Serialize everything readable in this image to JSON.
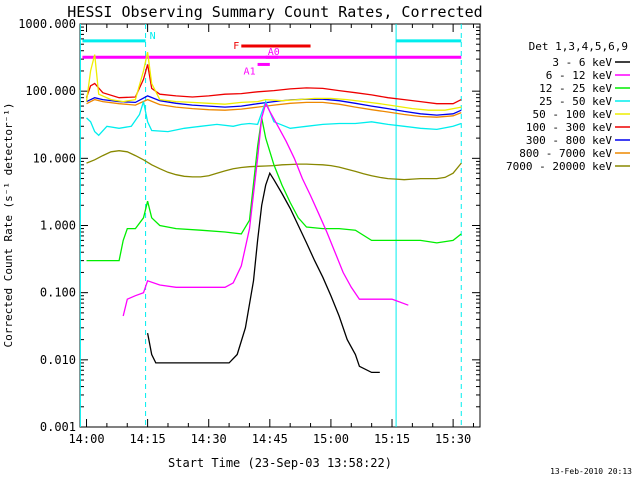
{
  "chart_data": {
    "type": "line",
    "title": "HESSI Observing Summary Count Rates, Corrected",
    "xlabel": "Start Time (23-Sep-03 13:58:22)",
    "ylabel": "Corrected Count Rate (s⁻¹ detector⁻¹)",
    "y_scale": "log",
    "ylim": [
      0.001,
      1000
    ],
    "xlim": [
      "13:58:22",
      "15:37:00"
    ],
    "x_tick_labels": [
      "14:00",
      "14:15",
      "14:30",
      "14:45",
      "15:00",
      "15:15",
      "15:30"
    ],
    "x_tick_minutes": [
      0,
      15,
      30,
      45,
      60,
      75,
      90
    ],
    "y_tick_labels": [
      "0.001",
      "0.010",
      "0.100",
      "1.000",
      "10.000",
      "100.000",
      "1000.000"
    ],
    "y_tick_values": [
      0.001,
      0.01,
      0.1,
      1,
      10,
      100,
      1000
    ],
    "legend_title": "Det 1,3,4,5,6,9",
    "legend_position": "right",
    "footer_date": "13-Feb-2010 20:13",
    "x_units": "minutes after 14:00 UT",
    "series": [
      {
        "name": "3 - 6 keV",
        "color": "#000000",
        "points": [
          [
            15,
            0.025
          ],
          [
            16,
            0.012
          ],
          [
            17,
            0.009
          ],
          [
            25,
            0.009
          ],
          [
            30,
            0.009
          ],
          [
            35,
            0.009
          ],
          [
            37,
            0.012
          ],
          [
            39,
            0.03
          ],
          [
            41,
            0.15
          ],
          [
            42,
            0.6
          ],
          [
            43,
            2.0
          ],
          [
            44,
            4.0
          ],
          [
            45,
            6.0
          ],
          [
            46,
            4.8
          ],
          [
            48,
            3.0
          ],
          [
            50,
            1.8
          ],
          [
            52,
            1.0
          ],
          [
            54,
            0.55
          ],
          [
            56,
            0.3
          ],
          [
            58,
            0.17
          ],
          [
            60,
            0.09
          ],
          [
            62,
            0.045
          ],
          [
            64,
            0.02
          ],
          [
            66,
            0.012
          ],
          [
            67,
            0.008
          ],
          [
            70,
            0.0065
          ],
          [
            72,
            0.0065
          ]
        ]
      },
      {
        "name": "6 - 12 keV",
        "color": "#ff00ff",
        "points": [
          [
            9,
            0.045
          ],
          [
            10,
            0.08
          ],
          [
            12,
            0.09
          ],
          [
            14,
            0.1
          ],
          [
            15,
            0.15
          ],
          [
            18,
            0.13
          ],
          [
            22,
            0.12
          ],
          [
            28,
            0.12
          ],
          [
            34,
            0.12
          ],
          [
            36,
            0.14
          ],
          [
            38,
            0.25
          ],
          [
            40,
            0.9
          ],
          [
            42,
            10
          ],
          [
            43,
            40
          ],
          [
            44,
            65
          ],
          [
            45,
            50
          ],
          [
            47,
            30
          ],
          [
            49,
            18
          ],
          [
            51,
            10
          ],
          [
            53,
            5
          ],
          [
            55,
            2.8
          ],
          [
            57,
            1.5
          ],
          [
            59,
            0.8
          ],
          [
            61,
            0.4
          ],
          [
            63,
            0.2
          ],
          [
            65,
            0.12
          ],
          [
            67,
            0.08
          ],
          [
            70,
            0.08
          ],
          [
            75,
            0.08
          ],
          [
            79,
            0.065
          ]
        ]
      },
      {
        "name": "12 - 25 keV",
        "color": "#00ee00",
        "points": [
          [
            0,
            0.3
          ],
          [
            2,
            0.3
          ],
          [
            4,
            0.3
          ],
          [
            6,
            0.3
          ],
          [
            8,
            0.3
          ],
          [
            9,
            0.6
          ],
          [
            10,
            0.9
          ],
          [
            12,
            0.9
          ],
          [
            14,
            1.3
          ],
          [
            15,
            2.3
          ],
          [
            16,
            1.3
          ],
          [
            18,
            1.0
          ],
          [
            22,
            0.9
          ],
          [
            28,
            0.85
          ],
          [
            34,
            0.8
          ],
          [
            38,
            0.75
          ],
          [
            40,
            1.2
          ],
          [
            42,
            15
          ],
          [
            43,
            40
          ],
          [
            44,
            20
          ],
          [
            46,
            8
          ],
          [
            48,
            4
          ],
          [
            50,
            2.2
          ],
          [
            52,
            1.3
          ],
          [
            54,
            0.95
          ],
          [
            58,
            0.9
          ],
          [
            62,
            0.9
          ],
          [
            66,
            0.85
          ],
          [
            70,
            0.6
          ],
          [
            74,
            0.6
          ],
          [
            78,
            0.6
          ],
          [
            82,
            0.6
          ],
          [
            86,
            0.55
          ],
          [
            90,
            0.6
          ],
          [
            92,
            0.75
          ]
        ]
      },
      {
        "name": "25 - 50 keV",
        "color": "#00eeee",
        "points": [
          [
            0,
            40
          ],
          [
            1,
            35
          ],
          [
            2,
            25
          ],
          [
            3,
            22
          ],
          [
            5,
            30
          ],
          [
            8,
            28
          ],
          [
            11,
            30
          ],
          [
            13,
            45
          ],
          [
            14,
            70
          ],
          [
            15,
            35
          ],
          [
            16,
            26
          ],
          [
            20,
            25
          ],
          [
            24,
            28
          ],
          [
            28,
            30
          ],
          [
            32,
            32
          ],
          [
            36,
            30
          ],
          [
            38,
            32
          ],
          [
            40,
            33
          ],
          [
            42,
            32
          ],
          [
            44,
            70
          ],
          [
            46,
            35
          ],
          [
            50,
            28
          ],
          [
            54,
            30
          ],
          [
            58,
            32
          ],
          [
            62,
            33
          ],
          [
            66,
            33
          ],
          [
            70,
            35
          ],
          [
            74,
            32
          ],
          [
            78,
            30
          ],
          [
            82,
            28
          ],
          [
            86,
            27
          ],
          [
            90,
            30
          ],
          [
            92,
            33
          ]
        ]
      },
      {
        "name": "50 - 100 keV",
        "color": "#eeee00",
        "points": [
          [
            0,
            70
          ],
          [
            1,
            200
          ],
          [
            2,
            350
          ],
          [
            3,
            90
          ],
          [
            6,
            75
          ],
          [
            9,
            70
          ],
          [
            12,
            75
          ],
          [
            14,
            200
          ],
          [
            15,
            380
          ],
          [
            16,
            130
          ],
          [
            18,
            75
          ],
          [
            22,
            70
          ],
          [
            26,
            68
          ],
          [
            30,
            66
          ],
          [
            34,
            64
          ],
          [
            38,
            68
          ],
          [
            42,
            70
          ],
          [
            44,
            75
          ],
          [
            48,
            72
          ],
          [
            52,
            75
          ],
          [
            56,
            78
          ],
          [
            60,
            78
          ],
          [
            64,
            75
          ],
          [
            68,
            70
          ],
          [
            72,
            65
          ],
          [
            76,
            60
          ],
          [
            80,
            55
          ],
          [
            84,
            52
          ],
          [
            88,
            52
          ],
          [
            92,
            58
          ]
        ]
      },
      {
        "name": "100 - 300 keV",
        "color": "#ee0000",
        "points": [
          [
            0,
            80
          ],
          [
            1,
            120
          ],
          [
            2,
            130
          ],
          [
            4,
            95
          ],
          [
            8,
            80
          ],
          [
            12,
            82
          ],
          [
            14,
            150
          ],
          [
            15,
            250
          ],
          [
            16,
            110
          ],
          [
            18,
            90
          ],
          [
            22,
            85
          ],
          [
            26,
            82
          ],
          [
            30,
            85
          ],
          [
            34,
            90
          ],
          [
            38,
            92
          ],
          [
            42,
            98
          ],
          [
            46,
            102
          ],
          [
            50,
            108
          ],
          [
            54,
            112
          ],
          [
            58,
            110
          ],
          [
            62,
            102
          ],
          [
            66,
            95
          ],
          [
            70,
            88
          ],
          [
            74,
            80
          ],
          [
            78,
            75
          ],
          [
            82,
            70
          ],
          [
            86,
            65
          ],
          [
            90,
            65
          ],
          [
            92,
            75
          ]
        ]
      },
      {
        "name": "300 - 800 keV",
        "color": "#0000ee",
        "points": [
          [
            0,
            70
          ],
          [
            2,
            80
          ],
          [
            4,
            75
          ],
          [
            8,
            70
          ],
          [
            12,
            68
          ],
          [
            15,
            85
          ],
          [
            18,
            72
          ],
          [
            22,
            66
          ],
          [
            26,
            62
          ],
          [
            30,
            60
          ],
          [
            34,
            58
          ],
          [
            38,
            60
          ],
          [
            42,
            65
          ],
          [
            46,
            70
          ],
          [
            50,
            74
          ],
          [
            54,
            76
          ],
          [
            58,
            76
          ],
          [
            62,
            72
          ],
          [
            66,
            66
          ],
          [
            70,
            60
          ],
          [
            74,
            55
          ],
          [
            78,
            50
          ],
          [
            82,
            46
          ],
          [
            86,
            44
          ],
          [
            90,
            46
          ],
          [
            92,
            52
          ]
        ]
      },
      {
        "name": "800 - 7000 keV",
        "color": "#ee8800",
        "points": [
          [
            0,
            65
          ],
          [
            2,
            75
          ],
          [
            4,
            70
          ],
          [
            8,
            65
          ],
          [
            12,
            62
          ],
          [
            15,
            75
          ],
          [
            18,
            63
          ],
          [
            22,
            58
          ],
          [
            26,
            55
          ],
          [
            30,
            53
          ],
          [
            34,
            52
          ],
          [
            38,
            54
          ],
          [
            42,
            58
          ],
          [
            46,
            62
          ],
          [
            50,
            66
          ],
          [
            54,
            68
          ],
          [
            58,
            68
          ],
          [
            62,
            64
          ],
          [
            66,
            58
          ],
          [
            70,
            53
          ],
          [
            74,
            49
          ],
          [
            78,
            45
          ],
          [
            82,
            42
          ],
          [
            86,
            41
          ],
          [
            90,
            43
          ],
          [
            92,
            48
          ]
        ]
      },
      {
        "name": "7000 - 20000 keV",
        "color": "#888800",
        "points": [
          [
            0,
            8.5
          ],
          [
            2,
            9.5
          ],
          [
            4,
            11
          ],
          [
            6,
            12.5
          ],
          [
            8,
            13
          ],
          [
            10,
            12.5
          ],
          [
            12,
            11
          ],
          [
            14,
            9.5
          ],
          [
            16,
            8
          ],
          [
            18,
            7
          ],
          [
            20,
            6.2
          ],
          [
            22,
            5.7
          ],
          [
            24,
            5.4
          ],
          [
            26,
            5.3
          ],
          [
            28,
            5.3
          ],
          [
            30,
            5.5
          ],
          [
            32,
            6
          ],
          [
            34,
            6.5
          ],
          [
            36,
            7
          ],
          [
            38,
            7.3
          ],
          [
            40,
            7.5
          ],
          [
            42,
            7.6
          ],
          [
            44,
            7.7
          ],
          [
            46,
            7.8
          ],
          [
            48,
            8
          ],
          [
            50,
            8.1
          ],
          [
            52,
            8.2
          ],
          [
            54,
            8.2
          ],
          [
            56,
            8.1
          ],
          [
            58,
            8
          ],
          [
            60,
            7.8
          ],
          [
            62,
            7.4
          ],
          [
            64,
            6.9
          ],
          [
            66,
            6.4
          ],
          [
            68,
            5.9
          ],
          [
            70,
            5.5
          ],
          [
            72,
            5.2
          ],
          [
            74,
            5
          ],
          [
            76,
            4.9
          ],
          [
            78,
            4.8
          ],
          [
            80,
            4.9
          ],
          [
            82,
            5
          ],
          [
            84,
            5
          ],
          [
            86,
            5
          ],
          [
            88,
            5.2
          ],
          [
            90,
            6
          ],
          [
            92,
            8.5
          ]
        ]
      }
    ],
    "flag_bars": [
      {
        "label": "N",
        "color": "#00eeee",
        "start": -1,
        "end": 14.5,
        "y": 560
      },
      {
        "label": "",
        "color": "#00eeee",
        "start": 76,
        "end": 92,
        "y": 560
      },
      {
        "label": "F",
        "color": "#ee0000",
        "start": 38,
        "end": 55,
        "y": 470
      },
      {
        "label": "",
        "color": "#ff00ff",
        "start": -1,
        "end": 92,
        "y": 320
      },
      {
        "label": "A1",
        "color": "#ff00ff",
        "start": 42,
        "end": 45,
        "y": 250
      },
      {
        "label": "A0",
        "color": "#ff00ff",
        "start": 44,
        "end": 47,
        "y": 320
      }
    ],
    "vertical_lines": [
      {
        "minute": -1.5,
        "color": "#00eeee",
        "style": "solid"
      },
      {
        "minute": 14.5,
        "color": "#00eeee",
        "style": "dashed"
      },
      {
        "minute": 76,
        "color": "#00eeee",
        "style": "solid"
      },
      {
        "minute": 92,
        "color": "#00eeee",
        "style": "dashed"
      }
    ]
  }
}
